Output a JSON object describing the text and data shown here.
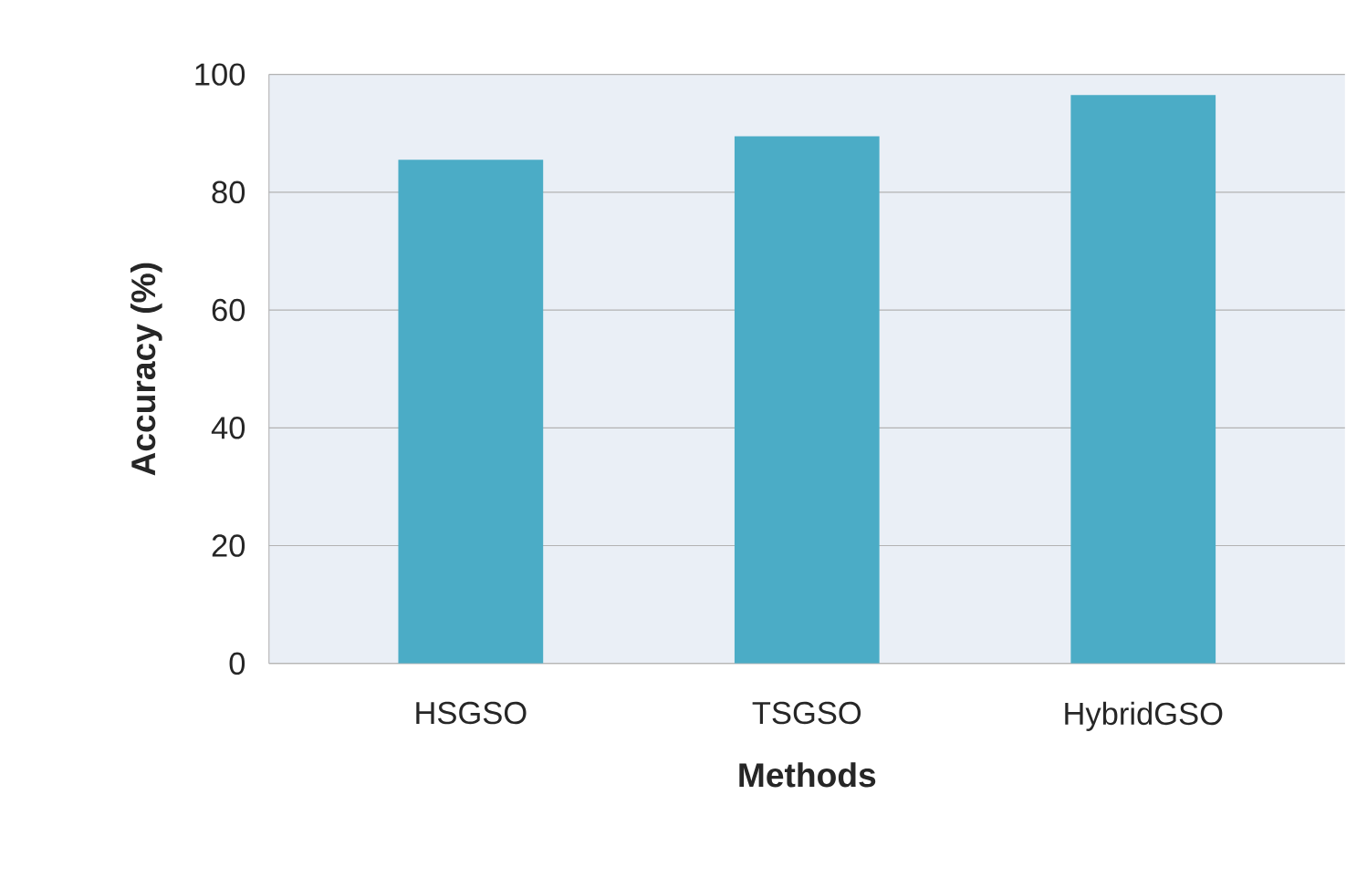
{
  "chart_data": {
    "type": "bar",
    "xlabel": "Methods",
    "ylabel": "Accuracy (%)",
    "categories": [
      "HSGSO",
      "TSGSO",
      "HybridGSO"
    ],
    "values": [
      85.5,
      89.5,
      96.5
    ],
    "color": "#4bacc6",
    "ylim": [
      0,
      100
    ],
    "yticks": [
      0,
      20,
      40,
      60,
      80,
      100
    ],
    "grid": "y"
  }
}
